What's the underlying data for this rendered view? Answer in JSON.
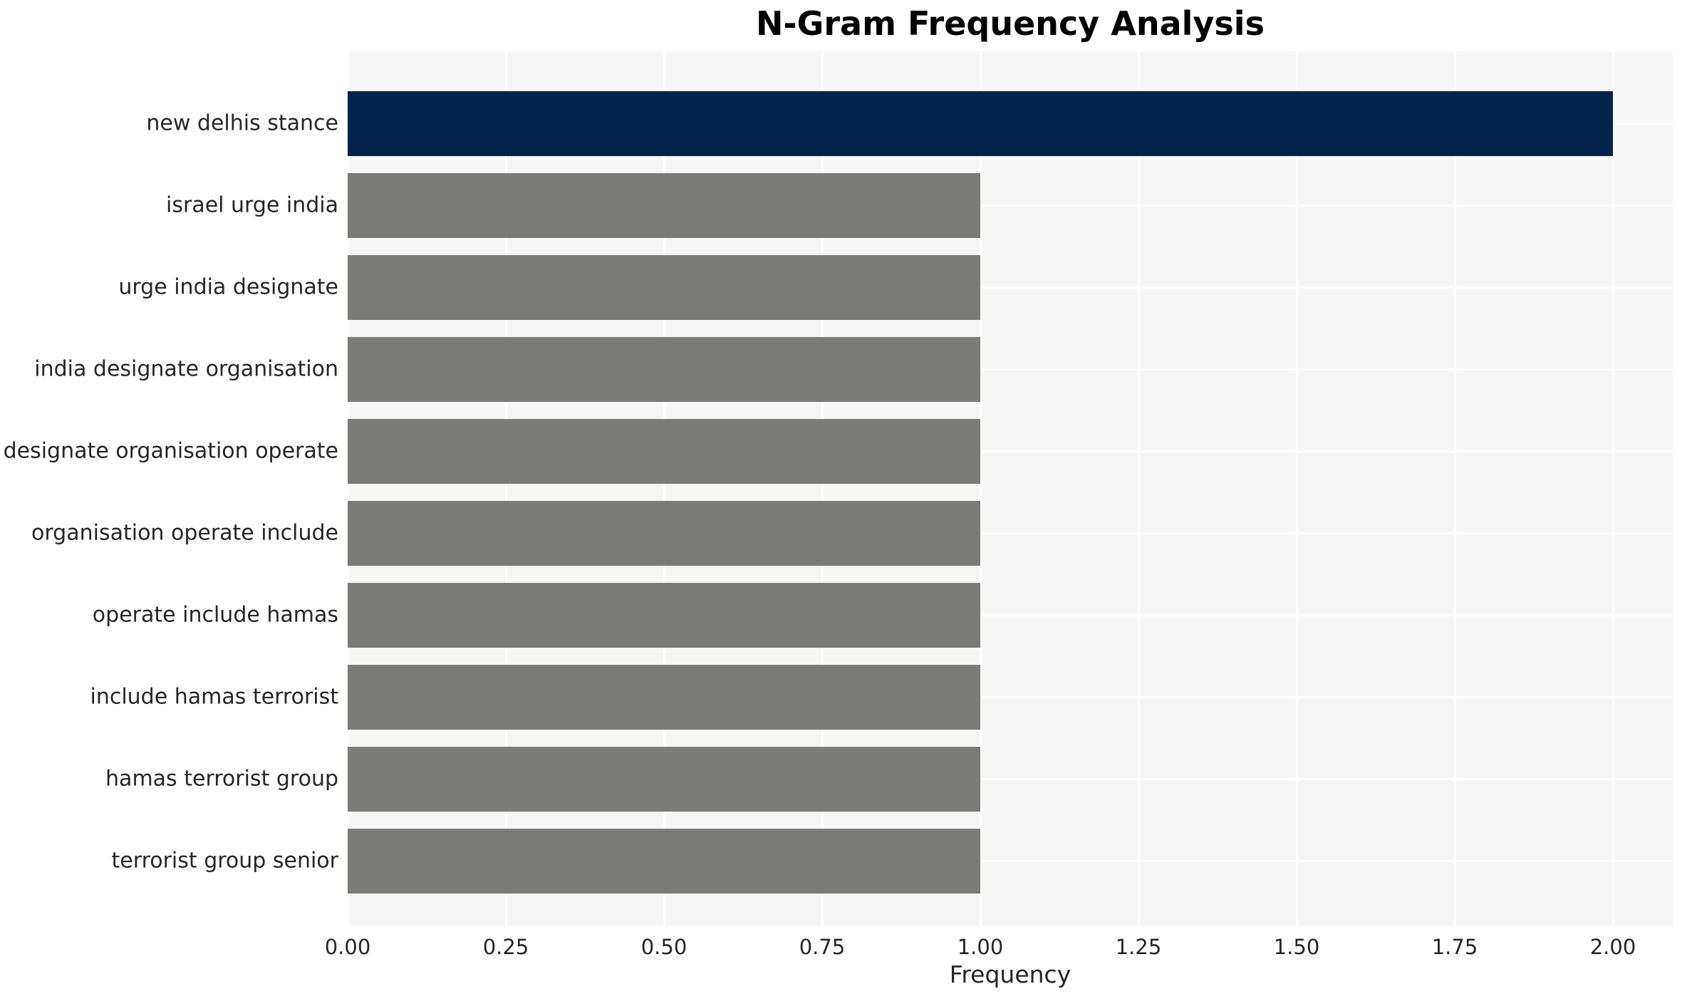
{
  "chart_data": {
    "type": "bar",
    "orientation": "horizontal",
    "title": "N-Gram Frequency Analysis",
    "xlabel": "Frequency",
    "ylabel": "",
    "categories": [
      "new delhis stance",
      "israel urge india",
      "urge india designate",
      "india designate organisation",
      "designate organisation operate",
      "organisation operate include",
      "operate include hamas",
      "include hamas terrorist",
      "hamas terrorist group",
      "terrorist group senior"
    ],
    "values": [
      2,
      1,
      1,
      1,
      1,
      1,
      1,
      1,
      1,
      1
    ],
    "colors": [
      "#02234c",
      "#7b7b77",
      "#7b7b77",
      "#7b7b77",
      "#7b7b77",
      "#7b7b77",
      "#7b7b77",
      "#7b7b77",
      "#7b7b77",
      "#7b7b77"
    ],
    "highlight_color": "#02234c",
    "default_bar_color": "#7b7b77",
    "xlim": [
      0,
      2.09
    ],
    "xticks": {
      "values": [
        0,
        0.25,
        0.5,
        0.75,
        1.0,
        1.25,
        1.5,
        1.75,
        2.0
      ],
      "labels": [
        "0.00",
        "0.25",
        "0.50",
        "0.75",
        "1.00",
        "1.25",
        "1.50",
        "1.75",
        "2.00"
      ]
    },
    "grid": true,
    "legend": false,
    "plot_background": "#f7f7f7",
    "grid_color": "#ffffff",
    "text_color": "#262626",
    "title_color": "#000000"
  }
}
